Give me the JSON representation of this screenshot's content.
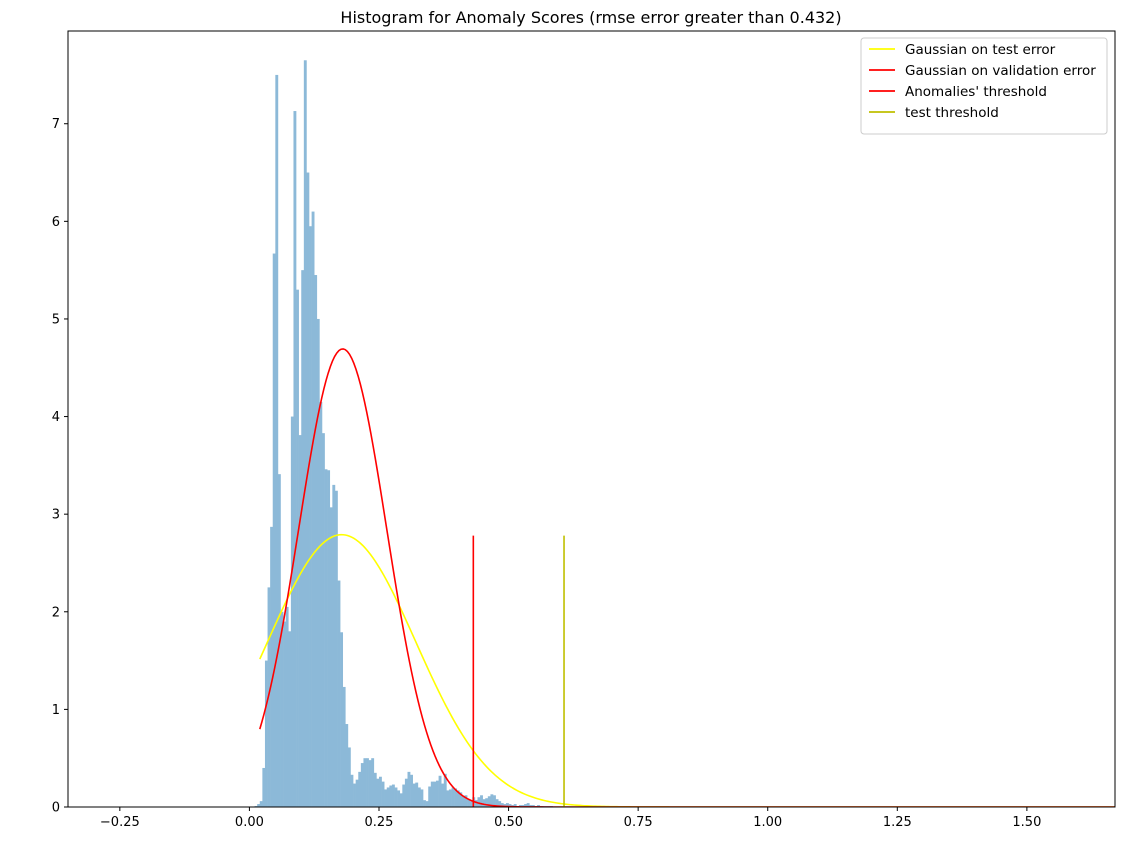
{
  "chart_data": {
    "type": "histogram",
    "title": "Histogram for Anomaly Scores (rmse error greater than 0.432)",
    "xlabel": "",
    "ylabel": "",
    "xlim": [
      -0.35,
      1.67
    ],
    "ylim": [
      0,
      7.95
    ],
    "x_ticks": [
      -0.25,
      0.0,
      0.25,
      0.5,
      0.75,
      1.0,
      1.25,
      1.5
    ],
    "x_tick_labels": [
      "−0.25",
      "0.00",
      "0.25",
      "0.50",
      "0.75",
      "1.00",
      "1.25",
      "1.50"
    ],
    "y_ticks": [
      0,
      1,
      2,
      3,
      4,
      5,
      6,
      7
    ],
    "y_tick_labels": [
      "0",
      "1",
      "2",
      "3",
      "4",
      "5",
      "6",
      "7"
    ],
    "grid": false,
    "legend_position": "top-right",
    "histogram": {
      "color": "#8cb9d8",
      "bin_start": 0.01,
      "bin_width": 0.005,
      "density": [
        0.01,
        0.03,
        0.06,
        0.4,
        1.5,
        2.25,
        2.87,
        5.67,
        7.5,
        3.41,
        2.0,
        1.9,
        2.05,
        1.8,
        4.0,
        7.13,
        5.3,
        3.81,
        5.5,
        7.65,
        6.5,
        5.95,
        6.1,
        5.45,
        5.0,
        4.15,
        3.83,
        3.46,
        3.45,
        3.07,
        3.3,
        3.24,
        2.32,
        1.79,
        1.23,
        0.85,
        0.61,
        0.33,
        0.24,
        0.28,
        0.36,
        0.45,
        0.5,
        0.5,
        0.48,
        0.5,
        0.35,
        0.29,
        0.31,
        0.26,
        0.18,
        0.2,
        0.22,
        0.23,
        0.2,
        0.17,
        0.14,
        0.23,
        0.29,
        0.36,
        0.33,
        0.24,
        0.25,
        0.2,
        0.18,
        0.07,
        0.06,
        0.21,
        0.26,
        0.26,
        0.27,
        0.32,
        0.24,
        0.34,
        0.17,
        0.18,
        0.2,
        0.19,
        0.17,
        0.15,
        0.11,
        0.12,
        0.08,
        0.06,
        0.1,
        0.07,
        0.1,
        0.12,
        0.08,
        0.09,
        0.11,
        0.13,
        0.12,
        0.08,
        0.06,
        0.04,
        0.03,
        0.04,
        0.03,
        0.02,
        0.03,
        0.01,
        0.02,
        0.02,
        0.03,
        0.04,
        0.02,
        0.02,
        0.01,
        0.02,
        0.01,
        0.01,
        0.01,
        0.01,
        0.01
      ]
    },
    "series": [
      {
        "name": "Gaussian on test error",
        "kind": "gaussian",
        "color": "#ffff00",
        "mean": 0.178,
        "std": 0.143,
        "x_range": [
          0.02,
          1.67
        ]
      },
      {
        "name": "Gaussian on validation error",
        "kind": "gaussian",
        "color": "#ff0000",
        "mean": 0.18,
        "std": 0.085,
        "x_range": [
          0.02,
          1.67
        ]
      },
      {
        "name": "Anomalies' threshold",
        "kind": "vline",
        "color": "#ff0000",
        "x": 0.432,
        "y_range": [
          0,
          2.78
        ]
      },
      {
        "name": "test threshold",
        "kind": "vline",
        "color": "#bfbf00",
        "x": 0.607,
        "y_range": [
          0,
          2.78
        ]
      }
    ]
  }
}
